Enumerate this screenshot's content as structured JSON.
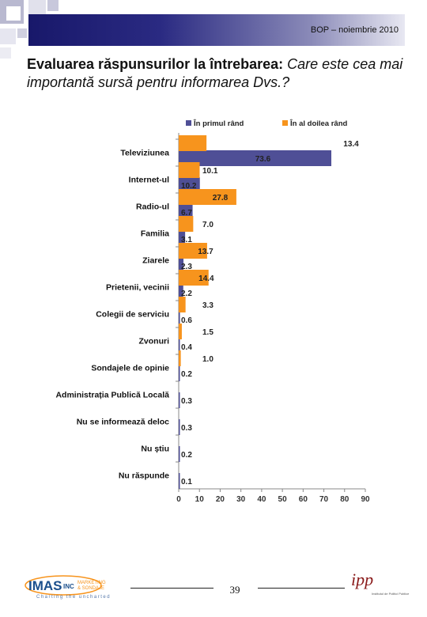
{
  "header": {
    "text": "BOP – noiembrie 2010"
  },
  "title": {
    "lead": "Evaluarea răspunsurilor la întrebarea:",
    "question": "Care este cea mai importantă sursă pentru informarea Dvs.?"
  },
  "chart_data": {
    "type": "bar",
    "orientation": "horizontal",
    "categories": [
      "Televiziunea",
      "Internet-ul",
      "Radio-ul",
      "Familia",
      "Ziarele",
      "Prietenii, vecinii",
      "Colegii de serviciu",
      "Zvonuri",
      "Sondajele de opinie",
      "Administrația Publică Locală",
      "Nu se informează deloc",
      "Nu știu",
      "Nu răspunde"
    ],
    "series": [
      {
        "name": "În primul rând",
        "color": "#4f4f96",
        "values": [
          73.6,
          10.2,
          6.7,
          3.1,
          2.3,
          2.2,
          0.6,
          0.4,
          0.2,
          0.3,
          0.3,
          0.2,
          0.1
        ]
      },
      {
        "name": "În al doilea rând",
        "color": "#f7941d",
        "values": [
          13.4,
          10.1,
          27.8,
          7.0,
          13.7,
          14.4,
          3.3,
          1.5,
          1.0,
          null,
          null,
          null,
          null
        ]
      }
    ],
    "xlim": [
      0,
      90
    ],
    "xticks": [
      0,
      10,
      20,
      30,
      40,
      50,
      60,
      70,
      80,
      90
    ],
    "legend_position": "top",
    "grid": false
  },
  "footer": {
    "page_number": "39",
    "imas_logo": {
      "brand": "IMAS",
      "suffix": "INC",
      "tag1": "MARKETING",
      "tag2": "& SONDAJE",
      "slogan": "Charting the uncharted"
    },
    "ipp_logo": {
      "mark": "ipp",
      "caption": "Institutul de Politici Publice"
    }
  }
}
